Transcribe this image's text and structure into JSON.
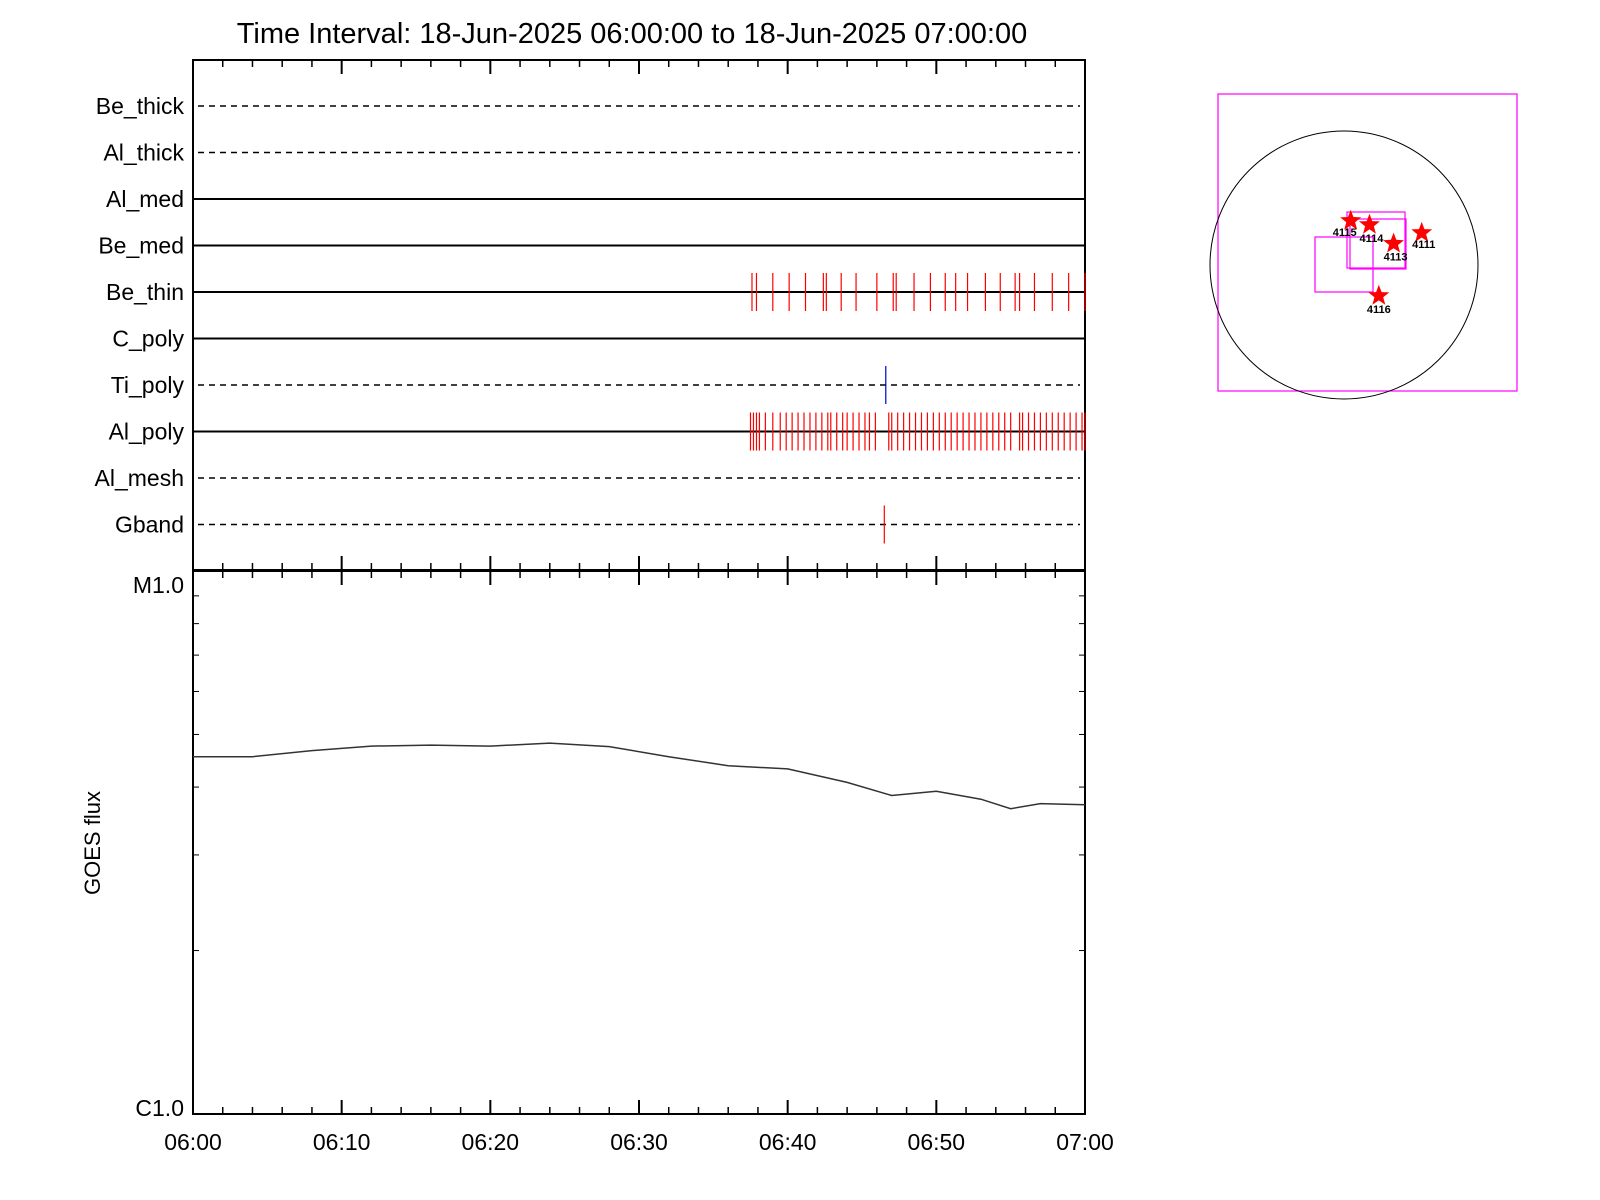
{
  "chart_data": [
    {
      "type": "event-timeline",
      "title": "Time Interval: 18-Jun-2025 06:00:00 to 18-Jun-2025 07:00:00",
      "time_range": [
        "06:00",
        "07:00"
      ],
      "channels": [
        {
          "name": "Be_thick",
          "style": "dashed",
          "events": []
        },
        {
          "name": "Al_thick",
          "style": "dashed",
          "events": []
        },
        {
          "name": "Al_med",
          "style": "solid",
          "events": []
        },
        {
          "name": "Be_med",
          "style": "solid",
          "events": []
        },
        {
          "name": "Be_thin",
          "style": "solid",
          "color": "#ff0000",
          "events": [
            "06:37.6",
            "06:37.9",
            "06:39.0",
            "06:40.1",
            "06:41.2",
            "06:42.4",
            "06:42.6",
            "06:43.6",
            "06:44.6",
            "06:46.0",
            "06:47.1",
            "06:47.3",
            "06:48.5",
            "06:49.6",
            "06:50.6",
            "06:51.3",
            "06:52.1",
            "06:53.3",
            "06:54.3",
            "06:55.3",
            "06:55.6",
            "06:56.6",
            "06:57.8",
            "06:58.9",
            "07:00.0"
          ]
        },
        {
          "name": "C_poly",
          "style": "solid",
          "events": []
        },
        {
          "name": "Ti_poly",
          "style": "dashed",
          "color": "#0000cc",
          "events": [
            "06:46.6"
          ]
        },
        {
          "name": "Al_poly",
          "style": "solid",
          "color": "#ff0000",
          "events": [
            "06:37.5",
            "06:37.7",
            "06:37.9",
            "06:38.1",
            "06:38.5",
            "06:39.0",
            "06:39.5",
            "06:39.9",
            "06:40.3",
            "06:40.7",
            "06:41.1",
            "06:41.5",
            "06:41.9",
            "06:42.3",
            "06:42.7",
            "06:42.9",
            "06:43.3",
            "06:43.7",
            "06:44.0",
            "06:44.4",
            "06:44.8",
            "06:45.2",
            "06:45.5",
            "06:45.9",
            "06:46.8",
            "06:47.0",
            "06:47.4",
            "06:47.8",
            "06:48.2",
            "06:48.6",
            "06:49.0",
            "06:49.4",
            "06:49.8",
            "06:50.2",
            "06:50.6",
            "06:51.0",
            "06:51.4",
            "06:51.8",
            "06:52.2",
            "06:52.6",
            "06:53.0",
            "06:53.4",
            "06:53.8",
            "06:54.2",
            "06:54.6",
            "06:55.0",
            "06:55.6",
            "06:55.8",
            "06:56.2",
            "06:56.6",
            "06:57.0",
            "06:57.4",
            "06:57.8",
            "06:58.2",
            "06:58.6",
            "06:59.0",
            "06:59.4",
            "06:59.8",
            "07:00.0"
          ]
        },
        {
          "name": "Al_mesh",
          "style": "dashed",
          "events": []
        },
        {
          "name": "Gband",
          "style": "dashed",
          "color": "#ff0000",
          "events": [
            "06:46.5"
          ]
        }
      ]
    },
    {
      "type": "line",
      "ylabel": "GOES flux",
      "ylim": [
        "C1.0",
        "M1.0"
      ],
      "yscale": "log",
      "y_tick_labels": [
        "M1.0",
        "C1.0"
      ],
      "x_tick_labels": [
        "06:00",
        "06:10",
        "06:20",
        "06:30",
        "06:40",
        "06:50",
        "07:00"
      ],
      "series": [
        {
          "color": "#333333",
          "x": [
            "06:00",
            "06:04",
            "06:08",
            "06:12",
            "06:16",
            "06:20",
            "06:24",
            "06:28",
            "06:32",
            "06:36",
            "06:40",
            "06:44",
            "06:47",
            "06:50",
            "06:53",
            "06:55",
            "06:57",
            "07:00"
          ],
          "y": [
            4.55e-06,
            4.55e-06,
            4.67e-06,
            4.76e-06,
            4.78e-06,
            4.76e-06,
            4.82e-06,
            4.75e-06,
            4.55e-06,
            4.38e-06,
            4.32e-06,
            4.08e-06,
            3.86e-06,
            3.93e-06,
            3.8e-06,
            3.65e-06,
            3.73e-06,
            3.71e-06
          ]
        }
      ]
    },
    {
      "type": "scatter",
      "subtype": "solar-disk-map",
      "points": [
        {
          "label": "4115",
          "x": 0.05,
          "y": 0.33
        },
        {
          "label": "4114",
          "x": 0.19,
          "y": 0.3
        },
        {
          "label": "4113",
          "x": 0.37,
          "y": 0.16
        },
        {
          "label": "4111",
          "x": 0.58,
          "y": 0.24
        },
        {
          "label": "4116",
          "x": 0.26,
          "y": -0.23
        }
      ],
      "box_color": "#ff00ff",
      "star_color": "#ff0000"
    }
  ]
}
